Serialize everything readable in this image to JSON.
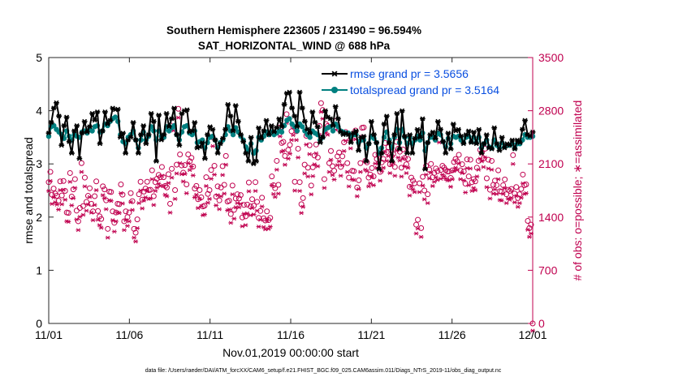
{
  "chart_data": {
    "type": "line",
    "title_line1": "Southern Hemisphere 223605 / 231490 = 96.594%",
    "title_line2": "SAT_HORIZONTAL_WIND @ 688 hPa",
    "xlabel": "Nov.01,2019 00:00:00 start",
    "ylabel_left": "rmse and totalspread",
    "ylabel_right": "# of obs: o=possible; ∗=assimilated",
    "footer": "data file: /Users/raeder/DAI/ATM_forcXX/CAM6_setup/f.e21.FHIST_BGC.f09_025.CAM6assim.011/Diags_NTrS_2019-11/obs_diag_output.nc",
    "xlim": [
      0,
      30
    ],
    "ylim_left": [
      0,
      5
    ],
    "ylim_right": [
      0,
      3500
    ],
    "x_tick_values": [
      0,
      5,
      10,
      15,
      20,
      25,
      30
    ],
    "x_tick_labels": [
      "11/01",
      "11/06",
      "11/11",
      "11/16",
      "11/21",
      "11/26",
      "12/01"
    ],
    "y_left_ticks": [
      "0",
      "1",
      "2",
      "3",
      "4",
      "5"
    ],
    "y_right_ticks": [
      "0",
      "700",
      "1400",
      "2100",
      "2800",
      "3500"
    ],
    "colors": {
      "rmse": "#000000",
      "spread": "#008080",
      "obs": "#c0004f",
      "legend_text": "#0a4fe0"
    },
    "legend": [
      {
        "label": "rmse grand pr = 3.5656"
      },
      {
        "label": "totalspread grand pr = 3.5164"
      }
    ],
    "series": [
      {
        "name": "rmse",
        "values": [
          3.58,
          3.78,
          4.05,
          4.15,
          3.9,
          3.35,
          3.72,
          3.88,
          3.42,
          3.2,
          3.62,
          3.72,
          3.1,
          3.58,
          3.8,
          3.6,
          3.7,
          3.95,
          3.82,
          3.98,
          3.38,
          3.62,
          3.98,
          3.75,
          3.82,
          4.05,
          4.02,
          4.03,
          3.5,
          3.58,
          3.2,
          3.45,
          3.5,
          3.78,
          3.45,
          3.2,
          3.55,
          3.72,
          3.38,
          3.55,
          3.95,
          3.8,
          3.05,
          3.92,
          3.45,
          3.55,
          3.95,
          3.7,
          3.85,
          4.05,
          3.55,
          3.35,
          3.95,
          4.0,
          4.02,
          3.6,
          3.62,
          3.78,
          3.3,
          3.32,
          3.4,
          3.1,
          3.55,
          3.7,
          3.65,
          3.45,
          3.2,
          3.38,
          3.48,
          3.65,
          4.12,
          3.9,
          3.62,
          4.1,
          3.8,
          3.55,
          3.42,
          3.2,
          3.05,
          3.5,
          3.0,
          3.05,
          3.68,
          3.48,
          3.62,
          3.82,
          3.55,
          3.72,
          3.6,
          3.68,
          3.85,
          3.7,
          4.12,
          4.33,
          4.35,
          4.05,
          3.9,
          3.7,
          4.35,
          4.05,
          3.8,
          3.65,
          3.58,
          3.98,
          3.78,
          3.7,
          3.4,
          3.5,
          4.0,
          3.88,
          3.85,
          3.72,
          4.08,
          3.85,
          3.6,
          3.55,
          3.58,
          3.55,
          3.4,
          3.58,
          3.62,
          3.25,
          3.5,
          3.52,
          3.05,
          3.38,
          3.8,
          3.55,
          3.4,
          2.9,
          3.2,
          3.75,
          3.9,
          3.4,
          3.05,
          3.55,
          3.95,
          3.28,
          4.0,
          3.52,
          3.2,
          3.55,
          3.2,
          3.48,
          3.65,
          3.5,
          3.85,
          2.9,
          3.4,
          3.55,
          3.6,
          3.48,
          3.8,
          3.65,
          3.42,
          3.2,
          3.58,
          3.28,
          3.75,
          3.62,
          3.65,
          3.52,
          3.38,
          3.55,
          3.62,
          3.4,
          3.6,
          3.38,
          3.65,
          3.2,
          3.38,
          3.55,
          3.3,
          3.28,
          3.68,
          3.38,
          3.25,
          3.5,
          3.3,
          3.38,
          3.35,
          3.45,
          3.28,
          3.45,
          3.4,
          3.65,
          3.82,
          3.55,
          3.52,
          3.6
        ],
        "marker": "asterisk"
      },
      {
        "name": "totalspread",
        "values": [
          3.52,
          3.7,
          3.72,
          3.65,
          3.6,
          3.55,
          3.48,
          3.62,
          3.52,
          3.45,
          3.55,
          3.52,
          3.5,
          3.6,
          3.62,
          3.58,
          3.65,
          3.62,
          3.7,
          3.72,
          3.6,
          3.62,
          3.75,
          3.72,
          3.8,
          3.85,
          3.88,
          3.8,
          3.55,
          3.42,
          3.38,
          3.5,
          3.55,
          3.62,
          3.45,
          3.3,
          3.45,
          3.6,
          3.45,
          3.52,
          3.7,
          3.62,
          3.45,
          3.62,
          3.52,
          3.5,
          3.7,
          3.62,
          3.68,
          3.72,
          3.55,
          3.45,
          3.6,
          3.7,
          3.72,
          3.58,
          3.55,
          3.62,
          3.4,
          3.42,
          3.45,
          3.3,
          3.4,
          3.5,
          3.52,
          3.45,
          3.3,
          3.4,
          3.45,
          3.55,
          3.7,
          3.62,
          3.55,
          3.68,
          3.6,
          3.52,
          3.45,
          3.32,
          3.25,
          3.38,
          3.2,
          3.25,
          3.5,
          3.45,
          3.52,
          3.6,
          3.55,
          3.6,
          3.55,
          3.58,
          3.62,
          3.6,
          3.72,
          3.82,
          3.85,
          3.75,
          3.7,
          3.62,
          3.75,
          3.7,
          3.62,
          3.55,
          3.5,
          3.62,
          3.58,
          3.55,
          3.45,
          3.5,
          3.65,
          3.68,
          3.7,
          3.62,
          3.75,
          3.7,
          3.62,
          3.6,
          3.58,
          3.58,
          3.52,
          3.55,
          3.55,
          3.4,
          3.45,
          3.45,
          3.3,
          3.38,
          3.52,
          3.48,
          3.4,
          3.2,
          3.3,
          3.5,
          3.6,
          3.45,
          3.3,
          3.5,
          3.65,
          3.4,
          3.65,
          3.5,
          3.38,
          3.5,
          3.38,
          3.45,
          3.52,
          3.45,
          3.58,
          3.25,
          3.4,
          3.5,
          3.5,
          3.45,
          3.58,
          3.55,
          3.42,
          3.32,
          3.48,
          3.38,
          3.52,
          3.5,
          3.52,
          3.45,
          3.4,
          3.5,
          3.52,
          3.42,
          3.5,
          3.4,
          3.5,
          3.3,
          3.38,
          3.45,
          3.32,
          3.3,
          3.45,
          3.35,
          3.3,
          3.4,
          3.32,
          3.35,
          3.35,
          3.38,
          3.3,
          3.38,
          3.38,
          3.45,
          3.55,
          3.5,
          3.5,
          3.52
        ],
        "marker": "filled-circle"
      }
    ],
    "obs_possible": [
      1860,
      1995,
      1695,
      1775,
      1710,
      1680,
      1615,
      1870,
      1685,
      1875,
      1745,
      1460,
      1455,
      1980,
      1670,
      1765,
      1900,
      1485,
      1345,
      1520,
      2110,
      1545,
      1920,
      1600,
      1680,
      1780,
      1575,
      1475,
      1675,
      1870,
      1480,
      1410,
      1375,
      1805,
      1765,
      1620,
      1245,
      1735,
      1730,
      1475,
      1325,
      1460,
      1575,
      1570,
      1830,
      1695,
      1345,
      1475,
      1400,
      1460,
      1715,
      1610,
      1245,
      1195,
      1370,
      1700,
      1865,
      1630,
      1735,
      1775,
      1865,
      1755,
      1760,
      2015,
      1675,
      1860,
      1905,
      1955,
      1925,
      2060,
      1925,
      1810,
      1790,
      1965,
      1575,
      2035,
      2655,
      1755,
      2090,
      2825,
      2225,
      2080,
      1985,
      2085,
      1830,
      2225,
      2135,
      2180,
      2065,
      1775,
      1810,
      1635,
      1755,
      1660,
      1540,
      1550,
      1925,
      1705,
      1755,
      2020,
      2450,
      2075,
      1670,
      1805,
      1620,
      1790,
      2070,
      1825,
      2205,
      1605,
      1615,
      1440,
      1815,
      1495,
      1645,
      1700,
      1645,
      1690,
      1395,
      1560,
      1410,
      1565,
      1855,
      1540,
      1635,
      1550,
      1860,
      1600,
      1390,
      1480,
      1655,
      1385,
      1355,
      1475,
      1360,
      1390,
      1935,
      1820,
      1780,
      2140,
      1825,
      2580,
      2375,
      2390,
      2205,
      2755,
      2285,
      2350,
      2530,
      2595,
      1865,
      2530,
      2300,
      1860,
      1570,
      1650,
      2090,
      2470,
      2050,
      2345,
      1815,
      2055,
      2210,
      2355,
      2185,
      2600,
      2900,
      2810,
      1900,
      2625,
      2600,
      2110,
      2270,
      2070,
      2010,
      2665,
      2200,
      2250,
      2060,
      2200,
      2385,
      2520,
      2110,
      1920,
      2420,
      2010,
      2005,
      2540,
      1790,
      1885,
      2110,
      2575,
      2580,
      2140,
      2120,
      1920,
      1960,
      2045,
      1935,
      2220,
      2165,
      2225,
      1995,
      2120,
      2165,
      2375,
      2255,
      2320,
      2095,
      2200,
      2230,
      2060,
      2390,
      2300,
      2260,
      2050,
      2290,
      2180,
      2095,
      2165,
      1800,
      1920,
      1880,
      1845,
      1300,
      1365,
      1845,
      1255,
      1930,
      1750,
      2075,
      1700,
      2025,
      2100,
      1925,
      1980,
      2040,
      2005,
      2500,
      2020,
      2075,
      2050,
      2020,
      2000,
      2000,
      1915,
      2015,
      2125,
      2165,
      2135,
      2220,
      2015,
      2095,
      2000,
      1840,
      2160,
      1935,
      2155,
      1860,
      1900,
      1870,
      2050,
      2140,
      2285,
      2250,
      2175,
      2300,
      1910,
      2155,
      1760,
      2140,
      1825,
      1880,
      1820,
      2015,
      1740,
      1735,
      1820,
      1895,
      1700,
      1760,
      1745,
      1770,
      2215,
      1710,
      1795,
      1650,
      1700,
      1770,
      1960,
      1820,
      1830,
      1350,
      1255,
      1300,
      0
    ],
    "obs_assimilated": [
      1840,
      1970,
      1670,
      1755,
      1690,
      1660,
      1595,
      1850,
      1665,
      1855,
      1725,
      1440,
      1435,
      1960,
      1650,
      1745,
      1880,
      1465,
      1325,
      1500,
      2090,
      1525,
      1900,
      1580,
      1660,
      1760,
      1555,
      1455,
      1655,
      1850,
      1460,
      1390,
      1355,
      1785,
      1745,
      1600,
      1225,
      1715,
      1710,
      1455,
      1305,
      1440,
      1555,
      1550,
      1810,
      1675,
      1325,
      1455,
      1380,
      1440,
      1695,
      1590,
      1225,
      1175,
      1350,
      1680,
      1845,
      1610,
      1715,
      1755,
      1845,
      1735,
      1740,
      1995,
      1655,
      1840,
      1885,
      1935,
      1905,
      2040,
      1905,
      1790,
      1770,
      1945,
      1555,
      2015,
      2635,
      1735,
      2070,
      2805,
      2205,
      2060,
      1965,
      2065,
      1810,
      2205,
      2115,
      2160,
      2045,
      1755,
      1790,
      1615,
      1735,
      1640,
      1520,
      1530,
      1905,
      1685,
      1735,
      2000,
      2430,
      2055,
      1650,
      1785,
      1600,
      1770,
      2050,
      1805,
      2185,
      1585,
      1595,
      1420,
      1795,
      1475,
      1625,
      1680,
      1625,
      1670,
      1375,
      1540,
      1390,
      1545,
      1835,
      1520,
      1615,
      1530,
      1840,
      1580,
      1370,
      1460,
      1635,
      1365,
      1335,
      1455,
      1340,
      1370,
      1915,
      1800,
      1760,
      2120,
      1805,
      2560,
      2355,
      2370,
      2185,
      2735,
      2265,
      2330,
      2510,
      2575,
      1845,
      2510,
      2280,
      1840,
      1550,
      1630,
      2070,
      2450,
      2030,
      2325,
      1795,
      2035,
      2190,
      2335,
      2165,
      2580,
      2880,
      2790,
      1880,
      2605,
      2580,
      2090,
      2250,
      2050,
      1990,
      2645,
      2180,
      2230,
      2040,
      2180,
      2365,
      2500,
      2090,
      1900,
      2400,
      1990,
      1985,
      2520,
      1770,
      1865,
      2090,
      2555,
      2560,
      2120,
      2100,
      1900,
      1940,
      2025,
      1915,
      2200,
      2145,
      2205,
      1975,
      2100,
      2145,
      2355,
      2235,
      2300,
      2075,
      2180,
      2210,
      2040,
      2370,
      2280,
      2240,
      2030,
      2270,
      2160,
      2075,
      2145,
      1780,
      1900,
      1860,
      1825,
      1280,
      1345,
      1825,
      1235,
      1910,
      1730,
      2055,
      1680,
      2005,
      2080,
      1905,
      1960,
      2020,
      1985,
      2480,
      2000,
      2055,
      2030,
      2000,
      1980,
      1980,
      1895,
      1995,
      2105,
      2145,
      2115,
      2200,
      1995,
      2075,
      1980,
      1820,
      2140,
      1915,
      2135,
      1840,
      1880,
      1850,
      2030,
      2120,
      2265,
      2230,
      2155,
      2280,
      1890,
      2135,
      1740,
      2120,
      1805,
      1860,
      1800,
      1995,
      1720,
      1715,
      1800,
      1875,
      1680,
      1740,
      1725,
      1750,
      2195,
      1690,
      1775,
      1630,
      1680,
      1750,
      1940,
      1800,
      1810,
      1330,
      1235,
      1280,
      0
    ]
  }
}
